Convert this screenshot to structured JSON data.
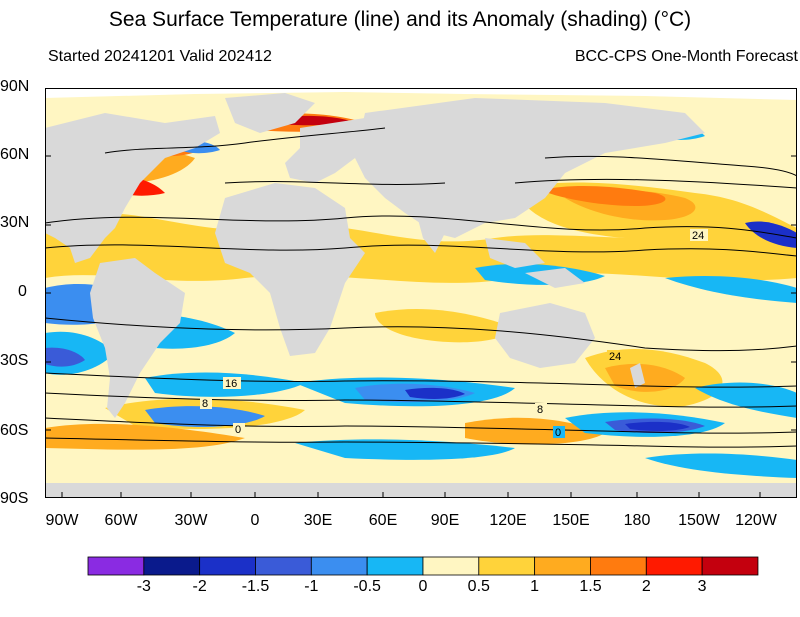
{
  "header": {
    "title": "Sea Surface Temperature (line) and its Anomaly (shading) (°C)",
    "started": "Started 20241201  Valid 202412",
    "source": "BCC-CPS One-Month Forecast"
  },
  "map": {
    "lat_labels": [
      "90N",
      "60N",
      "30N",
      "0",
      "30S",
      "60S",
      "90S"
    ],
    "lon_labels": [
      "90W",
      "60W",
      "30W",
      "0",
      "30E",
      "60E",
      "90E",
      "120E",
      "150E",
      "180",
      "150W",
      "120W"
    ],
    "contour_labels": [
      "24",
      "24",
      "16",
      "8",
      "8",
      "0",
      "0"
    ]
  },
  "colorbar": {
    "labels": [
      "-3",
      "-2",
      "-1.5",
      "-1",
      "-0.5",
      "0",
      "0.5",
      "1",
      "1.5",
      "2",
      "3"
    ],
    "colors": [
      "#8a2be2",
      "#0a1a8c",
      "#1b30c8",
      "#3a5bd8",
      "#3b8ef0",
      "#17b7f5",
      "#fff6c2",
      "#ffd33a",
      "#ffab1f",
      "#ff7b0f",
      "#ff1a00",
      "#c4000e"
    ]
  },
  "chart_data": {
    "type": "heatmap",
    "title": "Sea Surface Temperature (line) and its Anomaly (shading) (°C)",
    "subtitle_left": "Started 20241201  Valid 202412",
    "subtitle_right": "BCC-CPS One-Month Forecast",
    "xlabel": "",
    "ylabel": "",
    "x_ticks": [
      "90W",
      "60W",
      "30W",
      "0",
      "30E",
      "60E",
      "90E",
      "120E",
      "150E",
      "180",
      "150W",
      "120W"
    ],
    "y_ticks": [
      "90N",
      "60N",
      "30N",
      "0",
      "30S",
      "60S",
      "90S"
    ],
    "colorbar_levels": [
      -3,
      -2,
      -1.5,
      -1,
      -0.5,
      0,
      0.5,
      1,
      1.5,
      2,
      3
    ],
    "contour_levels_labeled": [
      0,
      8,
      16,
      24
    ]
  }
}
